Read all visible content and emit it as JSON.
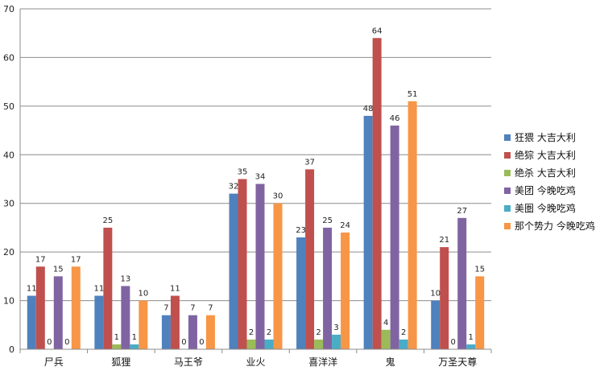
{
  "chart_data": {
    "type": "bar",
    "categories": [
      "尸兵",
      "狐狸",
      "马王爷",
      "业火",
      "喜洋洋",
      "鬼",
      "万圣天尊"
    ],
    "series": [
      {
        "name": "狂猥 大吉大利",
        "color": "#4F81BD",
        "values": [
          11,
          11,
          7,
          32,
          23,
          48,
          10
        ]
      },
      {
        "name": "绝猔 大吉大利",
        "color": "#C0504D",
        "values": [
          17,
          25,
          11,
          35,
          37,
          64,
          21
        ]
      },
      {
        "name": "绝杀 大吉大利",
        "color": "#9BBB59",
        "values": [
          0,
          1,
          0,
          2,
          2,
          4,
          0
        ]
      },
      {
        "name": "美团 今晚吃鸡",
        "color": "#8064A2",
        "values": [
          15,
          13,
          7,
          34,
          25,
          46,
          27
        ]
      },
      {
        "name": "美圏 今晚吃鸡",
        "color": "#4BACC6",
        "values": [
          0,
          1,
          0,
          2,
          3,
          2,
          1
        ]
      },
      {
        "name": "那个势力 今晚吃鸡",
        "color": "#F79646",
        "values": [
          17,
          10,
          7,
          30,
          24,
          51,
          15
        ]
      }
    ],
    "yticks": [
      0,
      10,
      20,
      30,
      40,
      50,
      60,
      70
    ],
    "ylim": [
      0,
      70
    ],
    "grid": true,
    "legend_position": "right"
  }
}
